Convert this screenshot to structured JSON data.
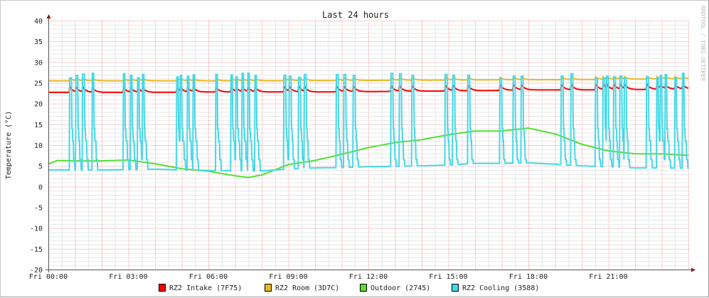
{
  "chart_data": {
    "type": "line",
    "title": "Last 24 hours",
    "ylabel": "Temperature (°C)",
    "ylim": [
      -20,
      40
    ],
    "yticks": [
      "40",
      "35",
      "30",
      "25",
      "20",
      "15",
      "10",
      "5",
      "0",
      "-5",
      "-10",
      "-15",
      "-20"
    ],
    "xlim": [
      "00:00",
      "24:00"
    ],
    "xticks": [
      {
        "time": "00:00",
        "label": "Fri 00:00"
      },
      {
        "time": "03:00",
        "label": "Fri 03:00"
      },
      {
        "time": "06:00",
        "label": "Fri 06:00"
      },
      {
        "time": "09:00",
        "label": "Fri 09:00"
      },
      {
        "time": "12:00",
        "label": "Fri 12:00"
      },
      {
        "time": "15:00",
        "label": "Fri 15:00"
      },
      {
        "time": "18:00",
        "label": "Fri 18:00"
      },
      {
        "time": "21:00",
        "label": "Fri 21:00"
      }
    ],
    "grid": true,
    "legend_position": "bottom",
    "watermark": "RRDTOOL / TOBI OETIKER",
    "series": [
      {
        "name": "RZ2 Intake (7F75)",
        "color": "#ff0000",
        "bump_peak_offset": 1.4,
        "points": [
          [
            "00:00",
            22.7
          ],
          [
            "02:00",
            22.7
          ],
          [
            "04:00",
            22.7
          ],
          [
            "06:00",
            22.8
          ],
          [
            "08:00",
            22.8
          ],
          [
            "10:00",
            22.8
          ],
          [
            "12:00",
            22.9
          ],
          [
            "14:00",
            23.0
          ],
          [
            "16:00",
            23.1
          ],
          [
            "18:00",
            23.3
          ],
          [
            "20:00",
            23.3
          ],
          [
            "22:00",
            23.4
          ],
          [
            "24:00",
            23.5
          ]
        ]
      },
      {
        "name": "RZ2 Room (3D7C)",
        "color": "#e8b820",
        "bump_peak_offset": 0.6,
        "points": [
          [
            "00:00",
            25.5
          ],
          [
            "04:00",
            25.5
          ],
          [
            "08:00",
            25.5
          ],
          [
            "12:00",
            25.6
          ],
          [
            "16:00",
            25.7
          ],
          [
            "20:00",
            25.8
          ],
          [
            "24:00",
            26.0
          ]
        ]
      },
      {
        "name": "Outdoor (2745)",
        "color": "#55dd33",
        "points": [
          [
            "00:00",
            5.4
          ],
          [
            "00:20",
            6.3
          ],
          [
            "01:00",
            6.2
          ],
          [
            "02:00",
            6.2
          ],
          [
            "03:00",
            6.4
          ],
          [
            "04:00",
            5.5
          ],
          [
            "05:00",
            4.3
          ],
          [
            "06:00",
            3.7
          ],
          [
            "07:00",
            2.6
          ],
          [
            "07:30",
            2.2
          ],
          [
            "08:00",
            2.8
          ],
          [
            "09:00",
            5.3
          ],
          [
            "10:00",
            6.3
          ],
          [
            "11:00",
            7.8
          ],
          [
            "12:00",
            9.4
          ],
          [
            "13:00",
            10.6
          ],
          [
            "14:00",
            11.3
          ],
          [
            "15:00",
            12.5
          ],
          [
            "16:00",
            13.4
          ],
          [
            "17:00",
            13.4
          ],
          [
            "18:00",
            14.1
          ],
          [
            "19:00",
            12.7
          ],
          [
            "20:00",
            10.2
          ],
          [
            "21:00",
            8.6
          ],
          [
            "22:00",
            7.9
          ],
          [
            "23:00",
            7.9
          ],
          [
            "24:00",
            7.5
          ]
        ]
      },
      {
        "name": "RZ2 Cooling (3588)",
        "color": "#44d8e8",
        "points": [
          [
            "00:00",
            4.0
          ],
          [
            "02:00",
            4.0
          ],
          [
            "04:00",
            4.2
          ],
          [
            "05:00",
            4.0
          ],
          [
            "06:00",
            3.9
          ],
          [
            "07:00",
            3.8
          ],
          [
            "08:00",
            3.8
          ],
          [
            "09:00",
            4.2
          ],
          [
            "10:00",
            4.5
          ],
          [
            "11:00",
            4.6
          ],
          [
            "12:00",
            4.8
          ],
          [
            "13:00",
            4.9
          ],
          [
            "14:00",
            5.0
          ],
          [
            "15:00",
            5.2
          ],
          [
            "16:00",
            5.6
          ],
          [
            "17:00",
            5.6
          ],
          [
            "18:00",
            5.7
          ],
          [
            "19:00",
            5.4
          ],
          [
            "20:00",
            5.0
          ],
          [
            "21:00",
            4.8
          ],
          [
            "22:00",
            4.5
          ],
          [
            "23:00",
            4.5
          ],
          [
            "24:00",
            4.4
          ]
        ],
        "spikes": [
          {
            "time": "00:48",
            "peak": 26.2
          },
          {
            "time": "01:02",
            "peak": 26.8
          },
          {
            "time": "01:17",
            "peak": 27.1
          },
          {
            "time": "01:38",
            "peak": 27.3
          },
          {
            "time": "02:48",
            "peak": 27.2
          },
          {
            "time": "03:04",
            "peak": 26.8
          },
          {
            "time": "03:20",
            "peak": 26.2
          },
          {
            "time": "03:31",
            "peak": 27.0
          },
          {
            "time": "04:48",
            "peak": 26.4
          },
          {
            "time": "04:56",
            "peak": 26.8
          },
          {
            "time": "05:12",
            "peak": 26.6
          },
          {
            "time": "05:25",
            "peak": 26.9
          },
          {
            "time": "06:16",
            "peak": 27.0
          },
          {
            "time": "06:50",
            "peak": 26.9
          },
          {
            "time": "07:01",
            "peak": 26.4
          },
          {
            "time": "07:15",
            "peak": 27.3
          },
          {
            "time": "07:28",
            "peak": 27.3
          },
          {
            "time": "07:44",
            "peak": 26.8
          },
          {
            "time": "08:50",
            "peak": 26.8
          },
          {
            "time": "09:02",
            "peak": 26.6
          },
          {
            "time": "09:23",
            "peak": 26.3
          },
          {
            "time": "09:36",
            "peak": 27.0
          },
          {
            "time": "10:48",
            "peak": 27.0
          },
          {
            "time": "11:05",
            "peak": 27.0
          },
          {
            "time": "11:26",
            "peak": 26.8
          },
          {
            "time": "12:51",
            "peak": 27.3
          },
          {
            "time": "13:10",
            "peak": 27.2
          },
          {
            "time": "13:38",
            "peak": 26.8
          },
          {
            "time": "14:53",
            "peak": 27.0
          },
          {
            "time": "15:10",
            "peak": 26.8
          },
          {
            "time": "15:44",
            "peak": 26.8
          },
          {
            "time": "16:56",
            "peak": 26.0
          },
          {
            "time": "17:26",
            "peak": 26.6
          },
          {
            "time": "17:44",
            "peak": 26.6
          },
          {
            "time": "19:14",
            "peak": 26.6
          },
          {
            "time": "19:36",
            "peak": 27.2
          },
          {
            "time": "20:31",
            "peak": 26.2
          },
          {
            "time": "20:48",
            "peak": 26.0
          },
          {
            "time": "20:56",
            "peak": 26.6
          },
          {
            "time": "21:12",
            "peak": 26.4
          },
          {
            "time": "21:26",
            "peak": 26.6
          },
          {
            "time": "21:36",
            "peak": 26.2
          },
          {
            "time": "22:26",
            "peak": 26.4
          },
          {
            "time": "22:48",
            "peak": 26.2
          },
          {
            "time": "22:56",
            "peak": 26.8
          },
          {
            "time": "23:07",
            "peak": 27.0
          },
          {
            "time": "23:29",
            "peak": 26.2
          },
          {
            "time": "23:46",
            "peak": 27.3
          }
        ]
      }
    ]
  }
}
